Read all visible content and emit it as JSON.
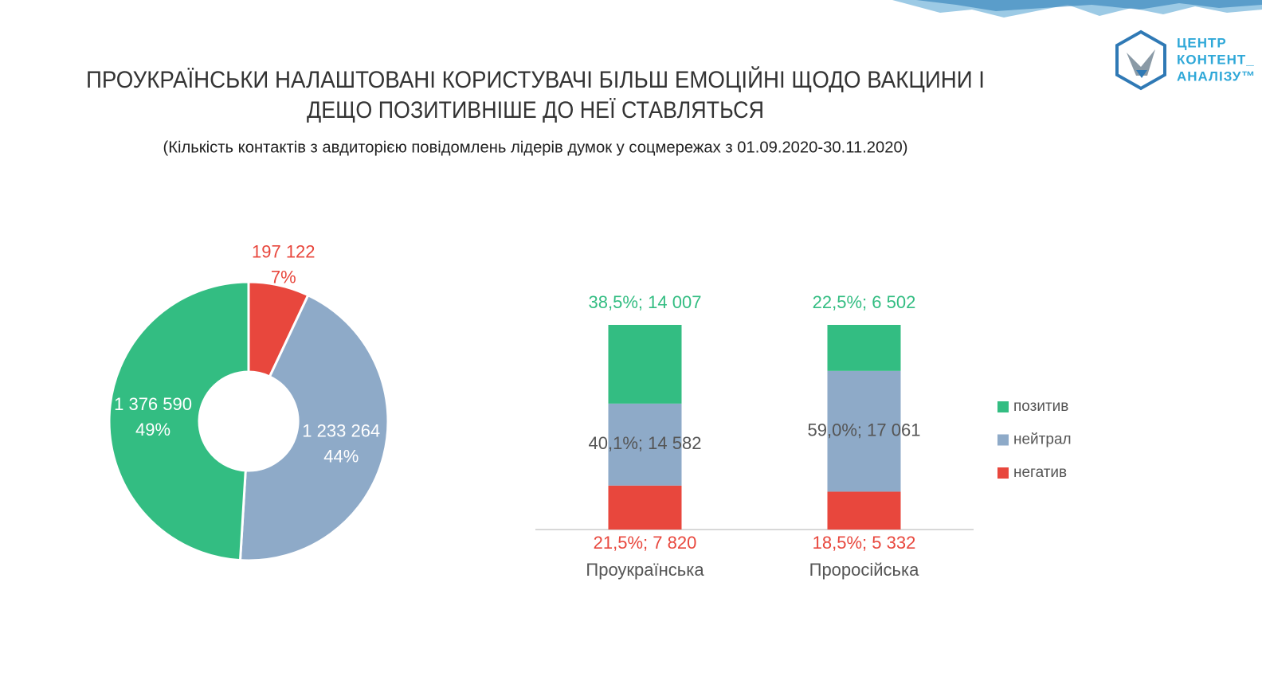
{
  "header": {
    "title_lines": [
      "ПРОУКРАЇНСЬКИ НАЛАШТОВАНІ КОРИСТУВАЧІ БІЛЬШ ЕМОЦІЙНІ ЩОДО ВАКЦИНИ І",
      "ДЕЩО ПОЗИТИВНІШЕ ДО НЕЇ СТАВЛЯТЬСЯ"
    ],
    "subtitle": "(Кількість контактів з авдиторією повідомлень лідерів думок у соцмережах з 01.09.2020-30.11.2020)"
  },
  "logo": {
    "lines": [
      "ЦЕНТР",
      "КОНТЕНТ_",
      "АНАЛІЗУ™"
    ]
  },
  "chart_data": [
    {
      "type": "pie",
      "donut": true,
      "values": [
        197122,
        1233264,
        1376590
      ],
      "value_labels": [
        "197 122",
        "1 233 264",
        "1 376 590"
      ],
      "percent_labels": [
        "7%",
        "44%",
        "49%"
      ],
      "colors": [
        "#e8473d",
        "#8eaac8",
        "#33bd82"
      ]
    },
    {
      "type": "bar",
      "stacked": true,
      "categories": [
        "Проукраїнська",
        "Проросійська"
      ],
      "series": [
        {
          "name": "позитив",
          "color": "#33bd82",
          "values": [
            38.5,
            22.5
          ],
          "value_labels": [
            "38,5%;  14 007",
            "22,5%;  6 502"
          ]
        },
        {
          "name": "нейтрал",
          "color": "#8eaac8",
          "values": [
            40.1,
            59.0
          ],
          "value_labels": [
            "40,1%;  14 582",
            "59,0%;  17 061"
          ]
        },
        {
          "name": "негатив",
          "color": "#e8473d",
          "values": [
            21.5,
            18.5
          ],
          "value_labels": [
            "21,5%;  7 820",
            "18,5%;  5 332"
          ]
        }
      ],
      "legend": "right"
    }
  ]
}
